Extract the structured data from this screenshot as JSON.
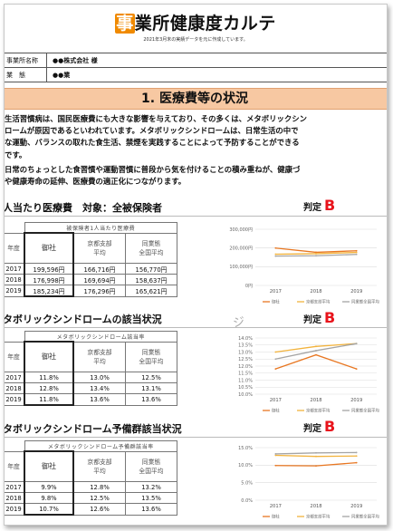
{
  "header": {
    "title_mark": "事",
    "title_rest": "業所健康度カルテ",
    "subtitle": "2021年3月末の実績データを元に作成しています。"
  },
  "info": [
    {
      "label": "事業所名称",
      "value": "●●株式会社 様"
    },
    {
      "label": "業　態",
      "value": "●●業"
    }
  ],
  "section1": {
    "heading": "1. 医療費等の状況",
    "paragraph1": [
      "生活習慣病は、国民医療費にも大きな影響を与えており、その多くは、メタボリックシン",
      "ロームが原因であるといわれています。メタボリックシンドロームは、日常生活の中で",
      "な運動、バランスの取れた食生活、禁煙を実践することによって予防することができる",
      "です。"
    ],
    "paragraph2": [
      "日常のちょっとした食習慣や運動習慣に普段から気を付けることの積み重ねが、健康づ",
      "や健康寿命の延伸、医療費の適正化につながります。"
    ]
  },
  "colors": {
    "own": "#e87722",
    "kyoto": "#f2b33d",
    "zenkoku": "#a5a5a5",
    "verdict": "#e8141c",
    "band": "#f7c8a2"
  },
  "blocks": [
    {
      "title": "人当たり医療費　対象：全被保険者",
      "verdict_label": "判定",
      "verdict": "B",
      "table_caption": "被保険者1人当たり医療費",
      "col_year": "年度",
      "col_own": "御社",
      "col_kyoto": [
        "京都支部",
        "平均"
      ],
      "col_zenkoku": [
        "同業態",
        "全国平均"
      ],
      "rows": [
        {
          "year": "2017",
          "own": "199,596円",
          "kyoto": "166,716円",
          "zenkoku": "156,770円"
        },
        {
          "year": "2018",
          "own": "176,998円",
          "kyoto": "169,694円",
          "zenkoku": "158,637円"
        },
        {
          "year": "2019",
          "own": "185,234円",
          "kyoto": "176,296円",
          "zenkoku": "165,621円"
        }
      ]
    },
    {
      "title": "タボリックシンドロームの該当状況",
      "verdict_label": "判定",
      "verdict": "B",
      "table_caption": "メタボリックシンドローム該当率",
      "col_year": "年度",
      "col_own": "御社",
      "col_kyoto": [
        "京都支部",
        "平均"
      ],
      "col_zenkoku": [
        "同業態",
        "全国平均"
      ],
      "rows": [
        {
          "year": "2017",
          "own": "11.8%",
          "kyoto": "13.0%",
          "zenkoku": "12.5%"
        },
        {
          "year": "2018",
          "own": "12.8%",
          "kyoto": "13.4%",
          "zenkoku": "13.1%"
        },
        {
          "year": "2019",
          "own": "11.8%",
          "kyoto": "13.6%",
          "zenkoku": "13.6%"
        }
      ]
    },
    {
      "title": "タボリックシンドローム予備群該当状況",
      "verdict_label": "判定",
      "verdict": "B",
      "table_caption": "メタボリックシンドローム予備群該当率",
      "col_year": "年度",
      "col_own": "御社",
      "col_kyoto": [
        "京都支部",
        "平均"
      ],
      "col_zenkoku": [
        "同業態",
        "全国平均"
      ],
      "rows": [
        {
          "year": "2017",
          "own": "9.9%",
          "kyoto": "12.8%",
          "zenkoku": "13.2%"
        },
        {
          "year": "2018",
          "own": "9.8%",
          "kyoto": "12.5%",
          "zenkoku": "13.5%"
        },
        {
          "year": "2019",
          "own": "10.7%",
          "kyoto": "12.6%",
          "zenkoku": "13.6%"
        }
      ]
    }
  ],
  "stray_text": "ジ",
  "chart_data": [
    {
      "type": "line",
      "x": [
        "2017",
        "2018",
        "2019"
      ],
      "ylim": [
        0,
        300000
      ],
      "yticks": [
        0,
        100000,
        200000,
        300000
      ],
      "ytick_labels": [
        "0円",
        "100,000円",
        "200,000円",
        "300,000円"
      ],
      "series": [
        {
          "name": "御社",
          "values": [
            199596,
            176998,
            185234
          ]
        },
        {
          "name": "京都支部平均",
          "values": [
            166716,
            169694,
            176296
          ]
        },
        {
          "name": "同業態全国平均",
          "values": [
            156770,
            158637,
            165621
          ]
        }
      ],
      "grid": true,
      "legend": "bottom"
    },
    {
      "type": "line",
      "x": [
        "2017",
        "2018",
        "2019"
      ],
      "ylim": [
        10,
        14
      ],
      "yticks": [
        10,
        10.5,
        11,
        11.5,
        12,
        12.5,
        13,
        13.5,
        14
      ],
      "ytick_labels": [
        "10.0%",
        "10.5%",
        "11.0%",
        "11.5%",
        "12.0%",
        "12.5%",
        "13.0%",
        "13.5%",
        "14.0%"
      ],
      "series": [
        {
          "name": "御社",
          "values": [
            11.8,
            12.8,
            11.8
          ]
        },
        {
          "name": "京都支部平均",
          "values": [
            13.0,
            13.4,
            13.6
          ]
        },
        {
          "name": "同業態全国平均",
          "values": [
            12.5,
            13.1,
            13.6
          ]
        }
      ],
      "grid": true,
      "legend": "bottom"
    },
    {
      "type": "line",
      "x": [
        "2017",
        "2018",
        "2019"
      ],
      "ylim": [
        0,
        15
      ],
      "yticks": [
        0,
        5,
        10,
        15
      ],
      "ytick_labels": [
        "0.0%",
        "5.0%",
        "10.0%",
        "15.0%"
      ],
      "series": [
        {
          "name": "御社",
          "values": [
            9.9,
            9.8,
            10.7
          ]
        },
        {
          "name": "京都支部平均",
          "values": [
            12.8,
            12.5,
            12.6
          ]
        },
        {
          "name": "同業態全国平均",
          "values": [
            13.2,
            13.5,
            13.6
          ]
        }
      ],
      "grid": true,
      "legend": "bottom"
    }
  ]
}
